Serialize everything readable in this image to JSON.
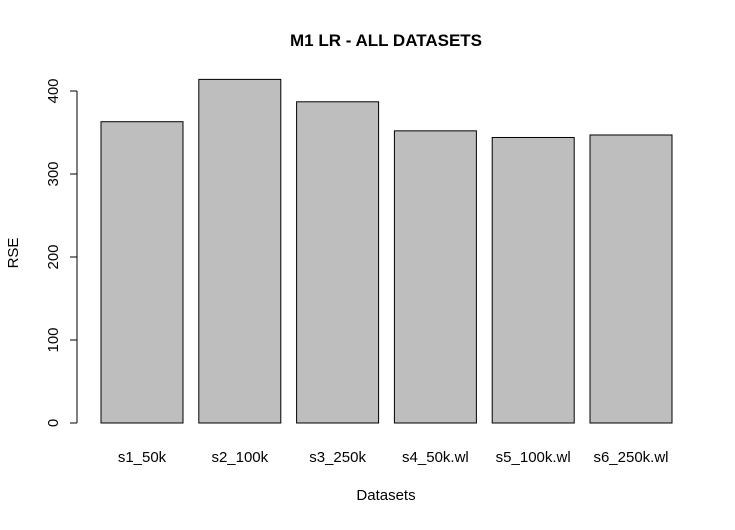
{
  "chart_data": {
    "type": "bar",
    "title": "M1 LR - ALL DATASETS",
    "xlabel": "Datasets",
    "ylabel": "RSE",
    "categories": [
      "s1_50k",
      "s2_100k",
      "s3_250k",
      "s4_50k.wl",
      "s5_100k.wl",
      "s6_250k.wl"
    ],
    "values": [
      363,
      414,
      387,
      352,
      344,
      347
    ],
    "ylim": [
      0,
      400
    ],
    "yticks": [
      "0",
      "100",
      "200",
      "300",
      "400"
    ],
    "grid": false,
    "legend": "none",
    "bar_color": "#bebebe",
    "border_color": "#000000"
  }
}
